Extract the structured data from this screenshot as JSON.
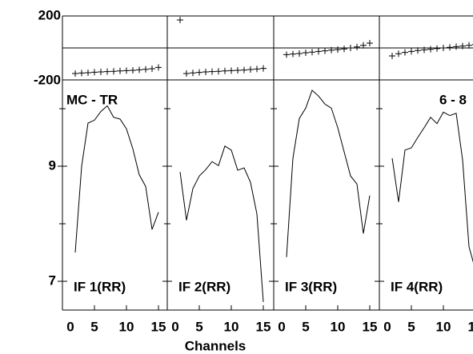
{
  "chart_data": {
    "type": "line",
    "annotations": [
      "MC - TR",
      "6 - 8"
    ],
    "x_label": "Channels",
    "x": [
      2,
      3,
      4,
      5,
      6,
      7,
      8,
      9,
      10,
      11,
      12,
      13,
      14,
      15
    ],
    "xlim": [
      0,
      16.5
    ],
    "xticks": [
      0,
      5,
      10,
      15
    ],
    "phase_ylim": [
      -200,
      200
    ],
    "phase_yticks": [
      -200,
      200
    ],
    "phase_reference": 0,
    "amp_ylim": [
      6.5,
      10.5
    ],
    "amp_yticks": [
      7,
      9
    ],
    "amp_minor_ticks": [
      8,
      10
    ],
    "color": "#000000",
    "panels": [
      {
        "name": "IF 1(RR)",
        "phase": [
          -160,
          -157,
          -155,
          -152,
          -150,
          -148,
          -146,
          -144,
          -142,
          -140,
          -137,
          -134,
          -130,
          -122
        ],
        "amplitude": [
          7.5,
          9.0,
          9.75,
          9.8,
          9.95,
          10.05,
          9.85,
          9.82,
          9.65,
          9.3,
          8.85,
          8.65,
          7.9,
          8.2
        ]
      },
      {
        "name": "IF 2(RR)",
        "phase": [
          175,
          -160,
          -156,
          -153,
          -150,
          -148,
          -146,
          -144,
          -142,
          -140,
          -138,
          -135,
          -132,
          -128
        ],
        "amplitude": [
          8.9,
          8.06,
          8.61,
          8.83,
          8.94,
          9.08,
          9.01,
          9.35,
          9.28,
          8.93,
          8.97,
          8.72,
          8.17,
          6.64
        ]
      },
      {
        "name": "IF 3(RR)",
        "phase": [
          -42,
          -38,
          -35,
          -30,
          -26,
          -22,
          -18,
          -14,
          -10,
          -6,
          0,
          6,
          16,
          30
        ],
        "amplitude": [
          7.42,
          9.14,
          9.83,
          10.01,
          10.32,
          10.22,
          10.08,
          10.01,
          9.67,
          9.25,
          8.83,
          8.69,
          7.83,
          8.49
        ]
      },
      {
        "name": "IF 4(RR)",
        "phase": [
          -50,
          -36,
          -28,
          -22,
          -16,
          -12,
          -8,
          -4,
          0,
          4,
          8,
          12,
          16,
          22
        ],
        "amplitude": [
          9.14,
          8.38,
          9.28,
          9.32,
          9.5,
          9.67,
          9.85,
          9.74,
          9.94,
          9.88,
          9.92,
          9.11,
          7.6,
          7.2
        ]
      }
    ]
  }
}
